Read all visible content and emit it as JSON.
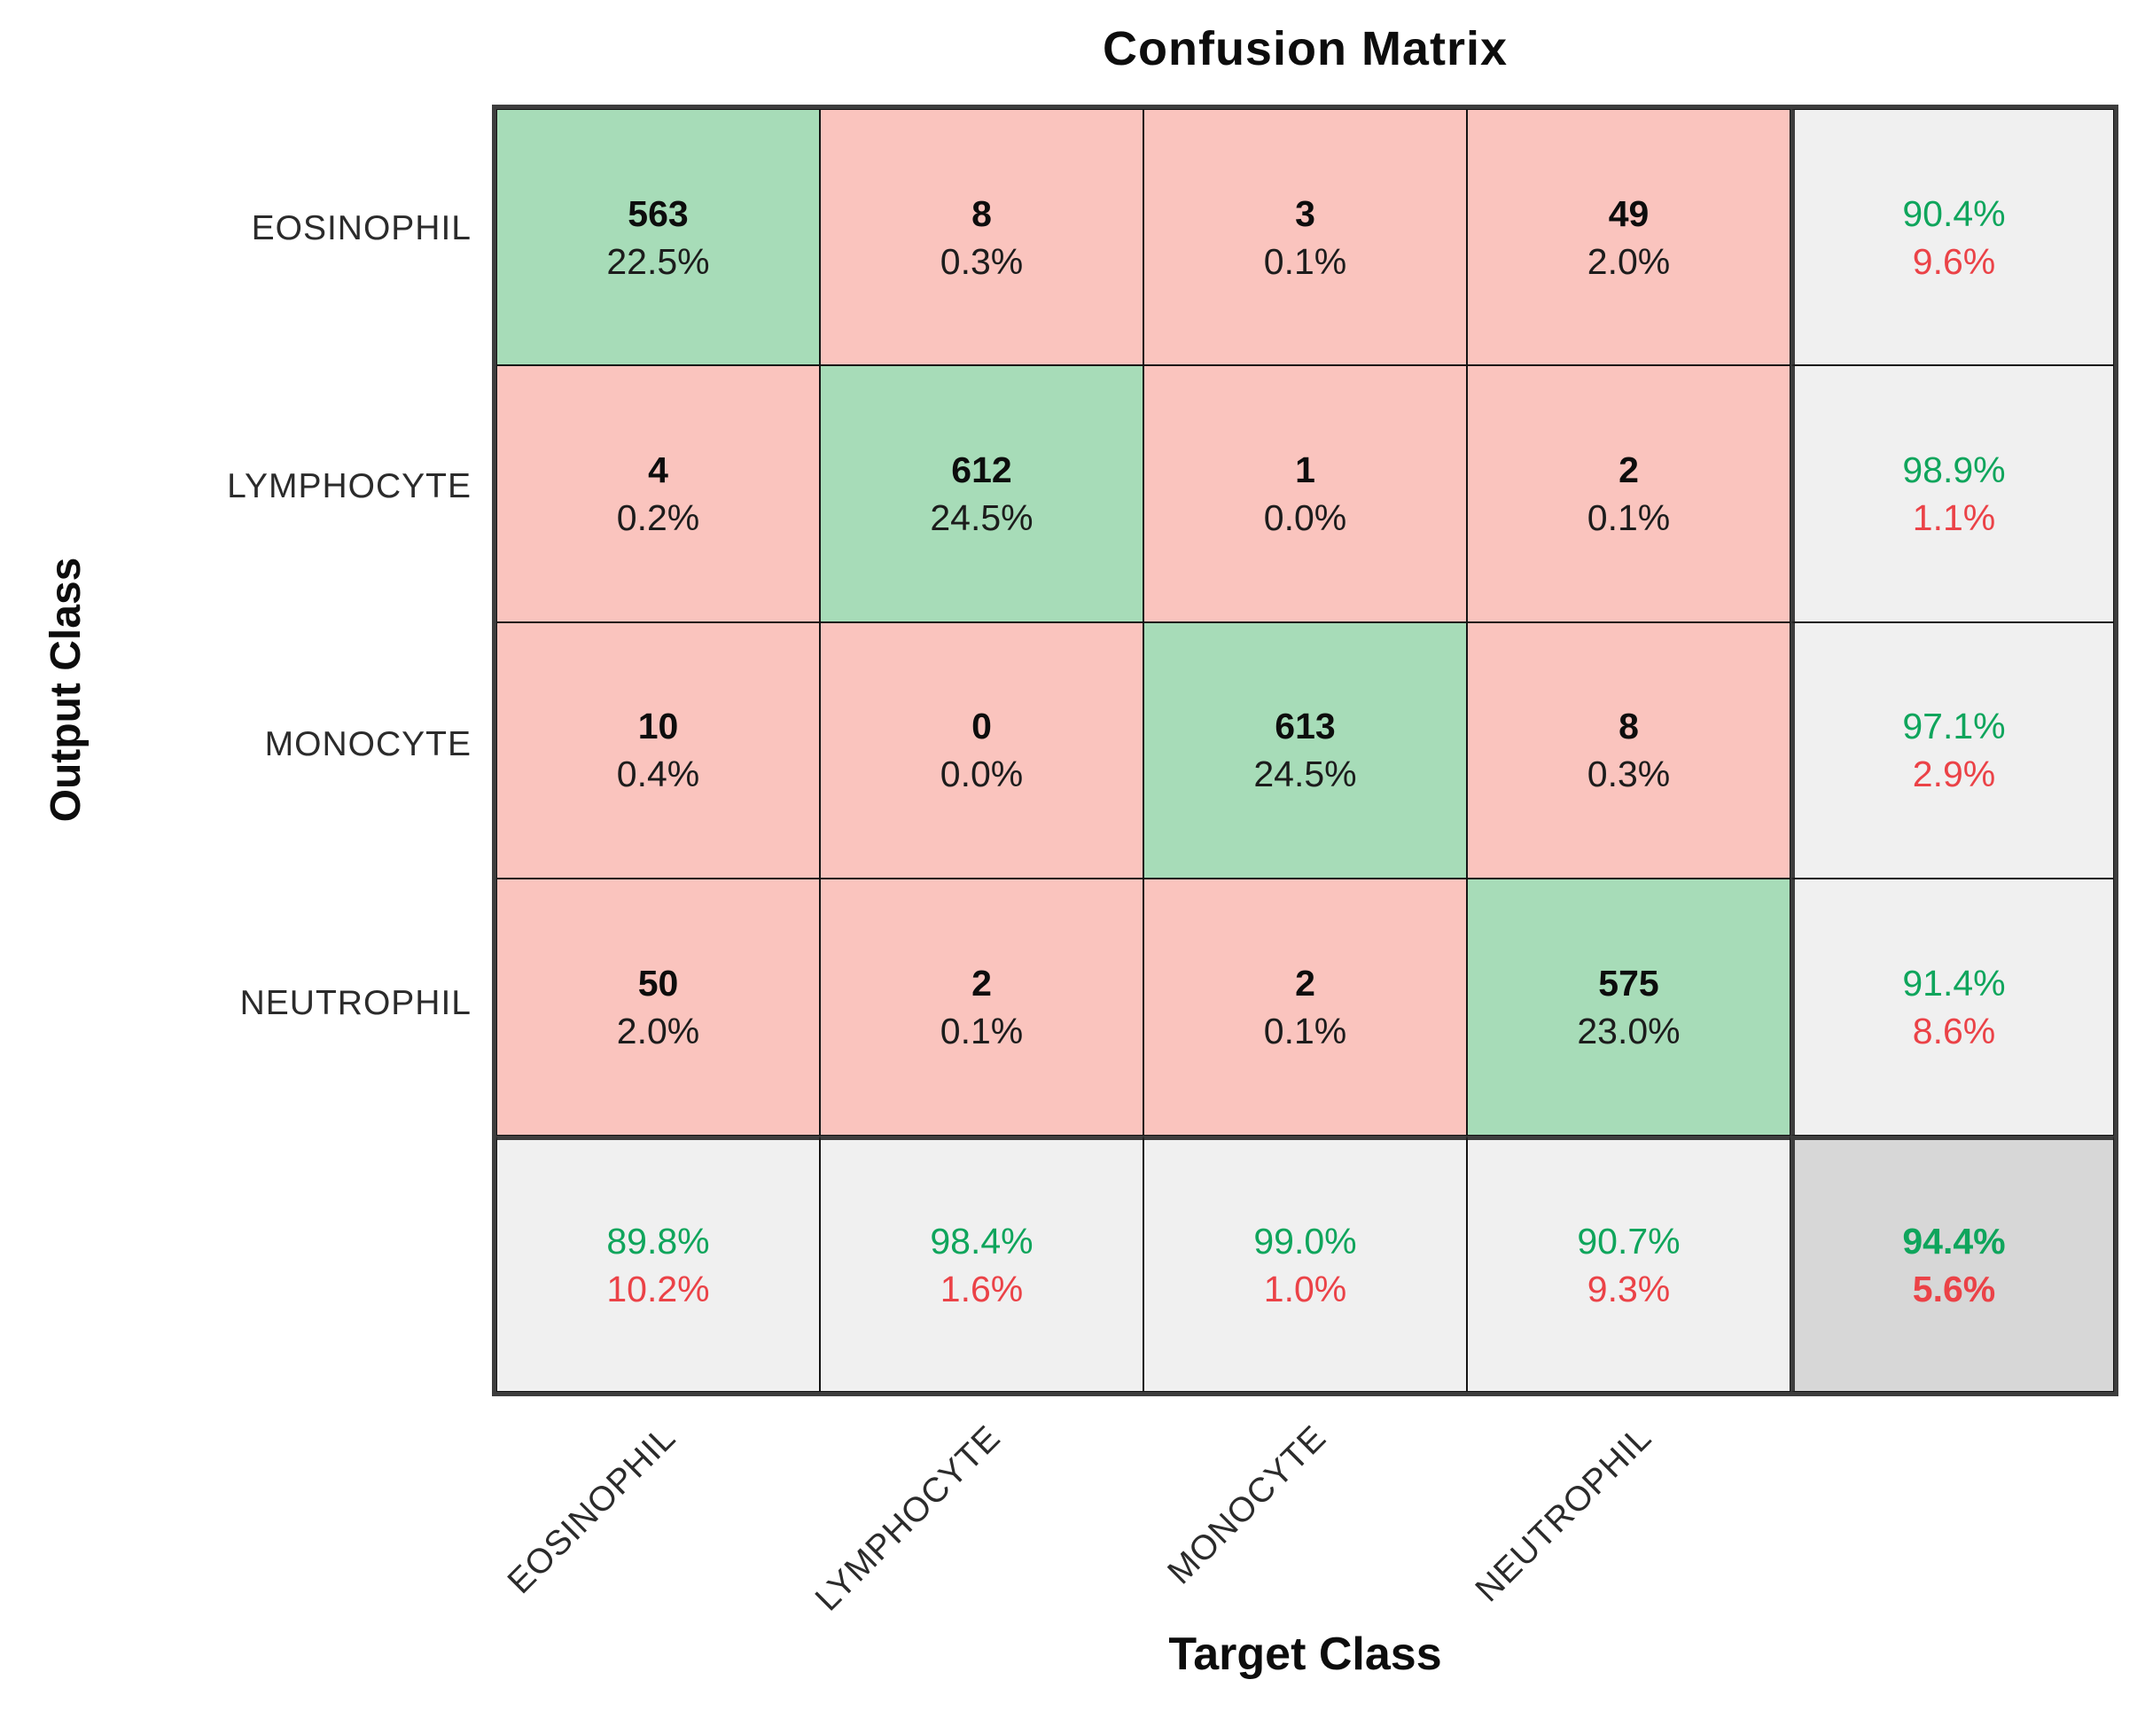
{
  "title": "Confusion Matrix",
  "chart_data": {
    "type": "heatmap",
    "title": "Confusion Matrix",
    "xlabel": "Target Class",
    "ylabel": "Output Class",
    "categories": [
      "EOSINOPHIL",
      "LYMPHOCYTE",
      "MONOCYTE",
      "NEUTROPHIL"
    ],
    "matrix_counts": [
      [
        563,
        8,
        3,
        49
      ],
      [
        4,
        612,
        1,
        2
      ],
      [
        10,
        0,
        613,
        8
      ],
      [
        50,
        2,
        2,
        575
      ]
    ],
    "matrix_percent": [
      [
        "22.5%",
        "0.3%",
        "0.1%",
        "2.0%"
      ],
      [
        "0.2%",
        "24.5%",
        "0.0%",
        "0.1%"
      ],
      [
        "0.4%",
        "0.0%",
        "24.5%",
        "0.3%"
      ],
      [
        "2.0%",
        "0.1%",
        "0.1%",
        "23.0%"
      ]
    ],
    "row_summary": [
      [
        "90.4%",
        "9.6%"
      ],
      [
        "98.9%",
        "1.1%"
      ],
      [
        "97.1%",
        "2.9%"
      ],
      [
        "91.4%",
        "8.6%"
      ]
    ],
    "col_summary": [
      [
        "89.8%",
        "10.2%"
      ],
      [
        "98.4%",
        "1.6%"
      ],
      [
        "99.0%",
        "1.0%"
      ],
      [
        "90.7%",
        "9.3%"
      ]
    ],
    "overall": [
      "94.4%",
      "5.6%"
    ],
    "legend_position": "none",
    "grid": true
  },
  "colors": {
    "diagonal_bg": "#a7dcb8",
    "offdiagonal_bg": "#fac4be",
    "summary_bg": "#f0f0f0",
    "total_bg": "#d7d7d7",
    "positive_text": "#0fa55c",
    "negative_text": "#eb4247"
  }
}
